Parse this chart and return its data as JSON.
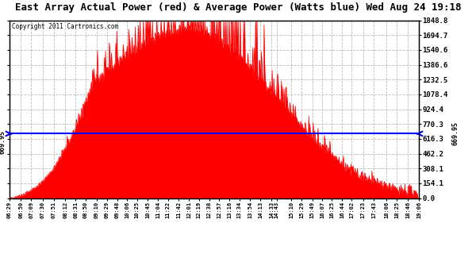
{
  "title": "East Array Actual Power (red) & Average Power (Watts blue) Wed Aug 24 19:18",
  "copyright": "Copyright 2011 Cartronics.com",
  "ymax": 1848.8,
  "ymin": 0.0,
  "yticks": [
    0.0,
    154.1,
    308.1,
    462.2,
    616.3,
    770.3,
    924.4,
    1078.4,
    1232.5,
    1386.6,
    1540.6,
    1694.7,
    1848.8
  ],
  "avg_power": 669.95,
  "xtick_labels": [
    "06:29",
    "06:50",
    "07:09",
    "07:30",
    "07:51",
    "08:12",
    "08:31",
    "08:50",
    "09:10",
    "09:29",
    "09:48",
    "10:06",
    "10:25",
    "10:45",
    "11:04",
    "11:22",
    "11:42",
    "12:01",
    "12:19",
    "12:38",
    "12:57",
    "13:16",
    "13:34",
    "13:54",
    "14:13",
    "14:33",
    "14:43",
    "15:10",
    "15:29",
    "15:49",
    "16:07",
    "16:25",
    "16:44",
    "17:02",
    "17:23",
    "17:43",
    "18:06",
    "18:25",
    "18:46",
    "19:06"
  ],
  "background_color": "#ffffff",
  "fill_color": "#ff0000",
  "line_color": "#0000ff",
  "grid_color": "#aaaaaa",
  "title_fontsize": 10,
  "grid_linestyle": "--"
}
